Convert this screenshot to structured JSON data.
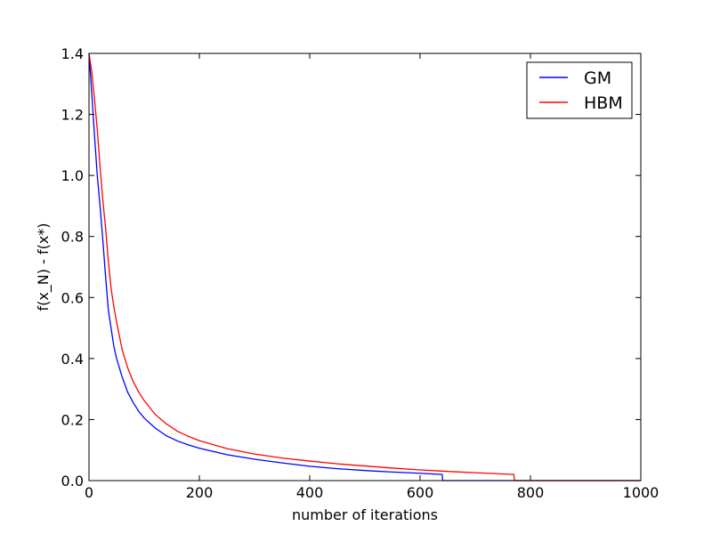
{
  "chart_data": {
    "type": "line",
    "title": "",
    "xlabel": "number of iterations",
    "ylabel": "f(x_N) - f(x*)",
    "xlim": [
      0,
      1000
    ],
    "ylim": [
      0.0,
      1.4
    ],
    "xticks": [
      0,
      200,
      400,
      600,
      800,
      1000
    ],
    "xtick_labels": [
      "0",
      "200",
      "400",
      "600",
      "800",
      "1000"
    ],
    "yticks": [
      0.0,
      0.2,
      0.4,
      0.6,
      0.8,
      1.0,
      1.2,
      1.4
    ],
    "ytick_labels": [
      "0.0",
      "0.2",
      "0.4",
      "0.6",
      "0.8",
      "1.0",
      "1.2",
      "1.4"
    ],
    "grid": false,
    "legend_position": "top-right",
    "series": [
      {
        "name": "GM",
        "color": "#0000ff",
        "x": [
          0,
          5,
          10,
          15,
          20,
          25,
          30,
          35,
          40,
          45,
          50,
          60,
          70,
          80,
          90,
          100,
          120,
          140,
          160,
          180,
          200,
          250,
          300,
          350,
          400,
          450,
          500,
          550,
          600,
          640,
          641,
          700,
          800,
          900,
          1000
        ],
        "y": [
          1.4,
          1.27,
          1.13,
          1.0,
          0.9,
          0.79,
          0.67,
          0.56,
          0.5,
          0.44,
          0.4,
          0.34,
          0.29,
          0.256,
          0.227,
          0.205,
          0.172,
          0.147,
          0.13,
          0.117,
          0.106,
          0.085,
          0.07,
          0.058,
          0.047,
          0.039,
          0.033,
          0.028,
          0.024,
          0.02,
          0.0,
          0.0,
          0.0,
          0.0,
          0.0
        ]
      },
      {
        "name": "HBM",
        "color": "#ff0000",
        "x": [
          0,
          5,
          10,
          15,
          20,
          25,
          30,
          35,
          40,
          45,
          50,
          60,
          70,
          80,
          90,
          100,
          120,
          140,
          160,
          180,
          200,
          250,
          300,
          350,
          400,
          450,
          500,
          550,
          600,
          650,
          700,
          770,
          771,
          800,
          900,
          1000
        ],
        "y": [
          1.4,
          1.34,
          1.25,
          1.15,
          1.03,
          0.92,
          0.83,
          0.72,
          0.63,
          0.57,
          0.52,
          0.43,
          0.37,
          0.325,
          0.29,
          0.262,
          0.217,
          0.186,
          0.162,
          0.145,
          0.131,
          0.105,
          0.087,
          0.074,
          0.064,
          0.055,
          0.048,
          0.041,
          0.035,
          0.03,
          0.026,
          0.02,
          0.0,
          0.0,
          0.0,
          0.0
        ]
      }
    ]
  }
}
